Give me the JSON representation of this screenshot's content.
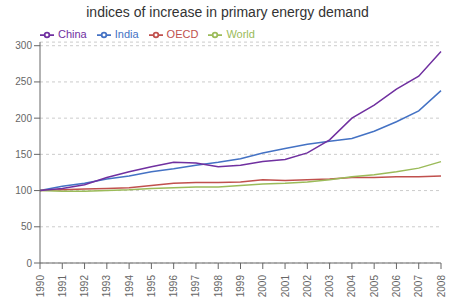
{
  "chart_data": {
    "type": "line",
    "title": "indices of increase in primary energy demand",
    "categories": [
      "1990",
      "1991",
      "1992",
      "1993",
      "1994",
      "1995",
      "1996",
      "1997",
      "1998",
      "1999",
      "2000",
      "2001",
      "2002",
      "2003",
      "2004",
      "2005",
      "2006",
      "2007",
      "2008"
    ],
    "series": [
      {
        "name": "India",
        "color": "#4472C4",
        "values": [
          100,
          106,
          110,
          116,
          120,
          126,
          130,
          135,
          139,
          144,
          152,
          158,
          164,
          168,
          172,
          182,
          195,
          210,
          238
        ]
      },
      {
        "name": "OECD",
        "color": "#C0504D",
        "values": [
          100,
          101,
          102,
          103,
          104,
          107,
          110,
          111,
          111,
          112,
          115,
          114,
          115,
          116,
          118,
          118,
          119,
          119,
          120
        ]
      },
      {
        "name": "World",
        "color": "#9BBB59",
        "values": [
          100,
          99,
          99,
          100,
          101,
          103,
          104,
          105,
          105,
          107,
          109,
          110,
          112,
          115,
          119,
          122,
          126,
          131,
          140
        ]
      },
      {
        "name": "China",
        "color": "#7030A0",
        "values": [
          100,
          103,
          108,
          118,
          126,
          133,
          139,
          138,
          133,
          135,
          140,
          143,
          152,
          170,
          200,
          218,
          240,
          258,
          292
        ]
      }
    ],
    "ylim": [
      0,
      305
    ],
    "yticks": [
      0,
      50,
      100,
      150,
      200,
      250,
      300
    ],
    "grid": true,
    "legend": "upper left"
  }
}
